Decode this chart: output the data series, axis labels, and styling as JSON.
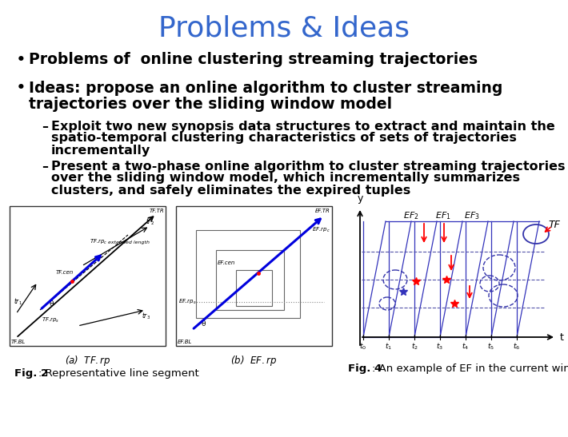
{
  "title": "Problems & Ideas",
  "title_color": "#3366CC",
  "title_fontsize": 26,
  "background_color": "#FFFFFF",
  "bullet1": "Problems of  online clustering streaming trajectories",
  "bullet2_line1": "Ideas: propose an online algorithm to cluster streaming",
  "bullet2_line2": "trajectories over the sliding window model",
  "sub1_dash": "–",
  "sub1_line1": "  Exploit two new synopsis data structures to extract and maintain the",
  "sub1_line2": "  spatio-temporal clustering characteristics of sets of trajectories",
  "sub1_line3": "  incrementally",
  "sub2_dash": "–",
  "sub2_line1": "  Present a two-phase online algorithm to cluster streaming trajectories",
  "sub2_line2": "  over the sliding window model, which incrementally summarizes",
  "sub2_line3": "  clusters, and safely eliminates the expired tuples",
  "fig2_bold": "Fig. 2",
  "fig2_rest": ": Representative line segment",
  "fig4_bold": "Fig. 4",
  "fig4_rest": ": An example of EF in the current window",
  "text_color": "#000000",
  "bullet_fontsize": 13.5,
  "sub_fontsize": 11.5,
  "fig_caption_fontsize": 9.5
}
